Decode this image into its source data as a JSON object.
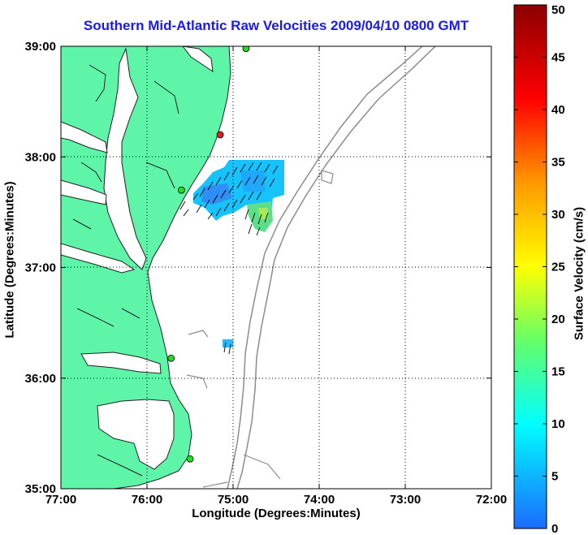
{
  "title": "Southern Mid-Atlantic Raw Velocities 2009/04/10 0800 GMT",
  "map": {
    "xlabel": "Longitude (Degrees:Minutes)",
    "ylabel": "Latitude (Degrees:Minutes)",
    "x_ticks": [
      "77:00",
      "76:00",
      "75:00",
      "74:00",
      "73:00",
      "72:00"
    ],
    "y_ticks": [
      "39:00",
      "38:00",
      "37:00",
      "36:00",
      "35:00"
    ],
    "lon_range": [
      -77,
      -72
    ],
    "lat_range": [
      35,
      39
    ],
    "land_color": "#5ef5a8",
    "water_color": "#ffffff",
    "grid": true,
    "stations": [
      {
        "lon": -74.85,
        "lat": 38.98,
        "color": "#22dd22"
      },
      {
        "lon": -75.15,
        "lat": 38.2,
        "color": "#e02020"
      },
      {
        "lon": -75.6,
        "lat": 37.7,
        "color": "#22dd22"
      },
      {
        "lon": -75.72,
        "lat": 36.18,
        "color": "#22dd22"
      },
      {
        "lon": -75.5,
        "lat": 35.27,
        "color": "#22dd22"
      }
    ]
  },
  "colorbar": {
    "label": "Surface Velocity (cm/s)",
    "min": 0,
    "max": 50,
    "ticks": [
      "0",
      "5",
      "10",
      "15",
      "20",
      "25",
      "30",
      "35",
      "40",
      "45",
      "50"
    ],
    "colors": [
      "#1a6bff",
      "#00ffff",
      "#66ff66",
      "#ffff00",
      "#ff9900",
      "#ff0000",
      "#8b0000"
    ]
  }
}
